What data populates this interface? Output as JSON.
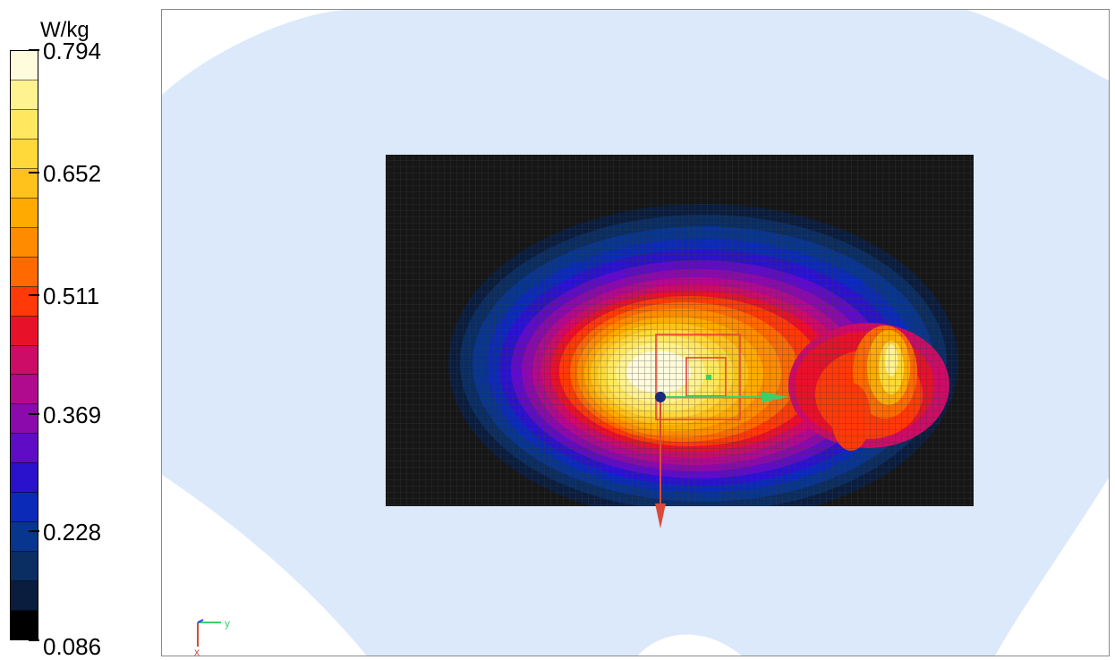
{
  "legend": {
    "unit": "W/kg",
    "ticks": [
      "0.794",
      "0.652",
      "0.511",
      "0.369",
      "0.228",
      "0.086"
    ],
    "colors": [
      "#fffbdc",
      "#fff290",
      "#ffe860",
      "#ffd83a",
      "#ffc21c",
      "#ffaa00",
      "#ff8c00",
      "#ff6a00",
      "#ff3a08",
      "#e8112a",
      "#cc0c66",
      "#b00a8e",
      "#8a0aac",
      "#5f0cc4",
      "#2a12cc",
      "#0b2ab8",
      "#08358e",
      "#0a2d62",
      "#0a1d3e",
      "#000000"
    ]
  },
  "axes": {
    "y_label": "y",
    "x_label": "x"
  },
  "colors": {
    "background_phantom": "#dce9fb",
    "scan_area": "#161616",
    "grid_lines": "#3c3c3c",
    "zoom_box": "#e8433a",
    "y_arrow": "#3ccf6a",
    "x_arrow": "#d84a3a",
    "origin_dot": "#1a2a7a"
  }
}
